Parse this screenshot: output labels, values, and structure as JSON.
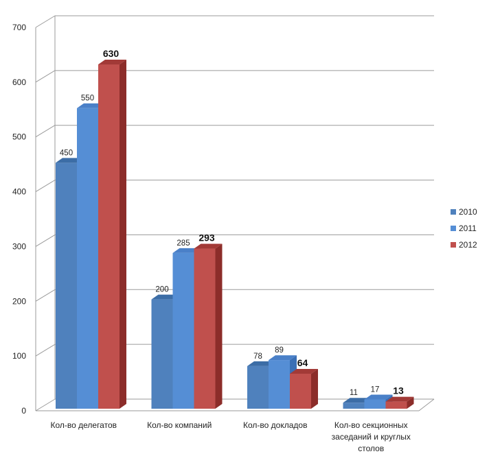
{
  "chart_data": {
    "type": "bar",
    "style": "3d-clustered-column",
    "categories": [
      [
        "Кол-во делегатов"
      ],
      [
        "Кол-во компаний"
      ],
      [
        "Кол-во докладов"
      ],
      [
        "Кол-во секционных",
        "заседаний и круглых",
        "столов"
      ]
    ],
    "series": [
      {
        "name": "2010",
        "values": [
          450,
          200,
          78,
          11
        ],
        "color": "#4F81BD",
        "side": "#2E5E93",
        "top": "#3C6DA6"
      },
      {
        "name": "2011",
        "values": [
          550,
          285,
          89,
          17
        ],
        "color": "#558ED5",
        "side": "#3A6FB5",
        "top": "#4A80C8"
      },
      {
        "name": "2012",
        "values": [
          630,
          293,
          64,
          13
        ],
        "color": "#C0504D",
        "side": "#8C2D2A",
        "top": "#A23A37",
        "label_bold": true
      }
    ],
    "ylim": [
      0,
      700
    ],
    "yticks": [
      0,
      100,
      200,
      300,
      400,
      500,
      600,
      700
    ],
    "grid": true,
    "legend": "right"
  }
}
